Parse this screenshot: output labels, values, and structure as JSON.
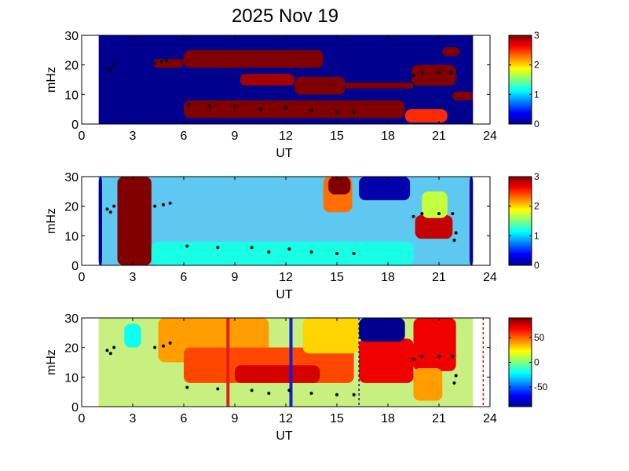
{
  "title": "2025 Nov 19",
  "chart_data": [
    {
      "type": "heatmap",
      "xlabel": "UT",
      "ylabel": "mHz",
      "xlim": [
        0,
        24
      ],
      "ylim": [
        0,
        30
      ],
      "xticks": [
        "0",
        "3",
        "6",
        "9",
        "12",
        "15",
        "18",
        "21",
        "24"
      ],
      "yticks": [
        "0",
        "10",
        "20",
        "30"
      ],
      "data_range_ut": [
        1,
        23
      ],
      "background_color": "#00008f",
      "colorbar": {
        "min": 0,
        "max": 3,
        "ticks": [
          "0",
          "1",
          "2",
          "3"
        ]
      },
      "patches": [
        {
          "ut": [
            4.2,
            6.0
          ],
          "mhz": [
            19,
            22
          ],
          "value": 3
        },
        {
          "ut": [
            6.0,
            14.2
          ],
          "mhz": [
            19,
            25
          ],
          "value": 3
        },
        {
          "ut": [
            9.3,
            12.5
          ],
          "mhz": [
            13,
            17
          ],
          "value": 2.9
        },
        {
          "ut": [
            12.5,
            15.5
          ],
          "mhz": [
            10,
            16
          ],
          "value": 3
        },
        {
          "ut": [
            15.5,
            19.5
          ],
          "mhz": [
            12,
            14
          ],
          "value": 3
        },
        {
          "ut": [
            19.4,
            22.0
          ],
          "mhz": [
            13,
            20
          ],
          "value": 3
        },
        {
          "ut": [
            21.2,
            22.2
          ],
          "mhz": [
            23,
            26
          ],
          "value": 3
        },
        {
          "ut": [
            6.0,
            19.0
          ],
          "mhz": [
            2,
            8
          ],
          "value": 3
        },
        {
          "ut": [
            19.0,
            21.5
          ],
          "mhz": [
            0.5,
            5
          ],
          "value": 2.5
        },
        {
          "ut": [
            21.8,
            23.0
          ],
          "mhz": [
            8,
            11
          ],
          "value": 3
        }
      ],
      "markers": [
        [
          1.5,
          19
        ],
        [
          1.7,
          18
        ],
        [
          1.9,
          20
        ],
        [
          4.3,
          20.5
        ],
        [
          4.7,
          21
        ],
        [
          5.0,
          21.5
        ],
        [
          6.3,
          6.5
        ],
        [
          7.5,
          6
        ],
        [
          9.0,
          6
        ],
        [
          10.5,
          5
        ],
        [
          12.0,
          5.5
        ],
        [
          13.5,
          4.5
        ],
        [
          15.0,
          4
        ],
        [
          16.0,
          4
        ],
        [
          19.5,
          16.5
        ],
        [
          20.0,
          17.5
        ],
        [
          21.0,
          17.5
        ],
        [
          21.7,
          17.5
        ]
      ]
    },
    {
      "type": "heatmap",
      "xlabel": "UT",
      "ylabel": "mHz",
      "xlim": [
        0,
        24
      ],
      "ylim": [
        0,
        30
      ],
      "xticks": [
        "0",
        "3",
        "6",
        "9",
        "12",
        "15",
        "18",
        "21",
        "24"
      ],
      "yticks": [
        "0",
        "10",
        "20",
        "30"
      ],
      "data_range_ut": [
        1,
        23
      ],
      "background_color": "#5ec8f0",
      "colorbar": {
        "min": 0,
        "max": 3,
        "ticks": [
          "0",
          "1",
          "2",
          "3"
        ]
      },
      "patches": [
        {
          "ut": [
            1.0,
            1.2
          ],
          "mhz": [
            0,
            30
          ],
          "value": 0
        },
        {
          "ut": [
            22.8,
            23.0
          ],
          "mhz": [
            0,
            30
          ],
          "value": 0
        },
        {
          "ut": [
            2.1,
            4.1
          ],
          "mhz": [
            0,
            30
          ],
          "value": 3
        },
        {
          "ut": [
            14.2,
            15.9
          ],
          "mhz": [
            18,
            30
          ],
          "value": 2.3
        },
        {
          "ut": [
            14.5,
            15.8
          ],
          "mhz": [
            24,
            30
          ],
          "value": 3
        },
        {
          "ut": [
            16.3,
            19.3
          ],
          "mhz": [
            22,
            30
          ],
          "value": 0.1
        },
        {
          "ut": [
            19.6,
            21.8
          ],
          "mhz": [
            9,
            17
          ],
          "value": 2.8
        },
        {
          "ut": [
            20.0,
            21.5
          ],
          "mhz": [
            16,
            25
          ],
          "value": 1.7
        },
        {
          "ut": [
            4.1,
            19.5
          ],
          "mhz": [
            0,
            8
          ],
          "value": 1.2
        }
      ],
      "markers": [
        [
          1.5,
          19
        ],
        [
          1.7,
          18
        ],
        [
          1.9,
          20
        ],
        [
          4.3,
          20
        ],
        [
          4.8,
          20.5
        ],
        [
          5.2,
          21
        ],
        [
          6.2,
          6.5
        ],
        [
          8.0,
          6
        ],
        [
          10.0,
          6
        ],
        [
          11.0,
          4.5
        ],
        [
          12.2,
          5.5
        ],
        [
          13.5,
          4.5
        ],
        [
          15.0,
          4
        ],
        [
          16.0,
          4
        ],
        [
          19.5,
          16.5
        ],
        [
          20.0,
          17.5
        ],
        [
          21.0,
          17.5
        ],
        [
          21.8,
          17.5
        ],
        [
          22.0,
          11
        ],
        [
          21.9,
          8.5
        ]
      ]
    },
    {
      "type": "heatmap",
      "xlabel": "UT",
      "ylabel": "mHz",
      "xlim": [
        0,
        24
      ],
      "ylim": [
        0,
        30
      ],
      "xticks": [
        "0",
        "3",
        "6",
        "9",
        "12",
        "15",
        "18",
        "21",
        "24"
      ],
      "yticks": [
        "0",
        "10",
        "20",
        "30"
      ],
      "data_range_ut": [
        1,
        23
      ],
      "background_color": "#c8f080",
      "colorbar": {
        "min": -90,
        "max": 90,
        "ticks": [
          "50",
          "0",
          "-50"
        ]
      },
      "patches": [
        {
          "ut": [
            2.5,
            3.5
          ],
          "mhz": [
            20,
            28
          ],
          "value": -20
        },
        {
          "ut": [
            4.5,
            11.0
          ],
          "mhz": [
            15,
            30
          ],
          "value": 40
        },
        {
          "ut": [
            6.0,
            16.0
          ],
          "mhz": [
            8,
            20
          ],
          "value": 55
        },
        {
          "ut": [
            13.0,
            16.3
          ],
          "mhz": [
            18,
            30
          ],
          "value": 30
        },
        {
          "ut": [
            16.3,
            19.5
          ],
          "mhz": [
            8,
            23
          ],
          "value": 70
        },
        {
          "ut": [
            16.3,
            19.0
          ],
          "mhz": [
            22,
            30
          ],
          "value": -90
        },
        {
          "ut": [
            19.5,
            22.0
          ],
          "mhz": [
            12,
            30
          ],
          "value": 70
        },
        {
          "ut": [
            19.5,
            21.2
          ],
          "mhz": [
            2,
            13
          ],
          "value": 40
        },
        {
          "ut": [
            9.0,
            14.0
          ],
          "mhz": [
            8,
            14
          ],
          "value": 75
        }
      ],
      "vlines": [
        {
          "ut": 8.6,
          "color": "#e02020",
          "style": "solid"
        },
        {
          "ut": 12.3,
          "color": "#1020d0",
          "style": "solid"
        },
        {
          "ut": 16.3,
          "color": "#101080",
          "style": "dashed"
        },
        {
          "ut": 23.6,
          "color": "#c01010",
          "style": "dashed"
        }
      ],
      "markers": [
        [
          1.5,
          19
        ],
        [
          1.7,
          18
        ],
        [
          1.9,
          20
        ],
        [
          4.3,
          20
        ],
        [
          4.8,
          20.5
        ],
        [
          5.2,
          21.5
        ],
        [
          6.2,
          6.5
        ],
        [
          8.0,
          6
        ],
        [
          10.0,
          5.5
        ],
        [
          11.0,
          4.5
        ],
        [
          12.2,
          5.5
        ],
        [
          13.5,
          4.5
        ],
        [
          15.0,
          4
        ],
        [
          16.0,
          4
        ],
        [
          19.5,
          16
        ],
        [
          20.0,
          17
        ],
        [
          21.0,
          17
        ],
        [
          21.8,
          17
        ],
        [
          22.0,
          10.5
        ],
        [
          21.9,
          8
        ]
      ]
    }
  ]
}
